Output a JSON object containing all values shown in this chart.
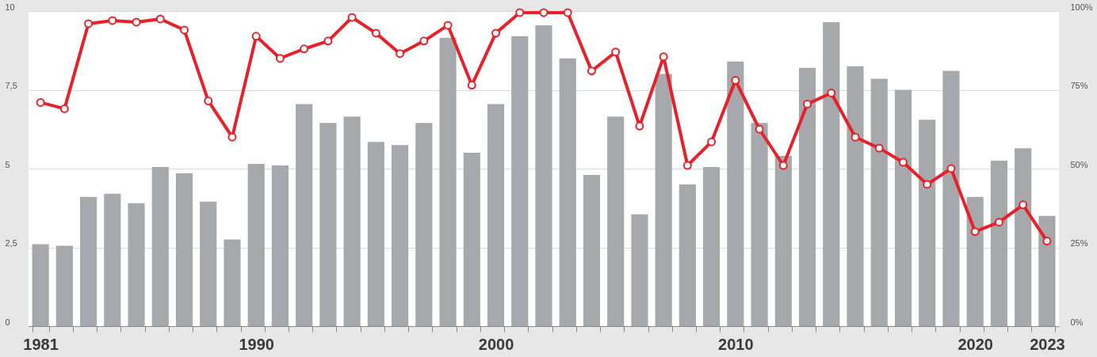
{
  "chart_data": {
    "type": "bar",
    "categories": [
      "1981",
      null,
      null,
      null,
      null,
      null,
      null,
      null,
      null,
      "1990",
      null,
      null,
      null,
      null,
      null,
      null,
      null,
      null,
      null,
      "2000",
      null,
      null,
      null,
      null,
      null,
      null,
      null,
      null,
      null,
      "2010",
      null,
      null,
      null,
      null,
      null,
      null,
      null,
      null,
      null,
      "2020",
      null,
      null,
      "2023"
    ],
    "series": [
      {
        "color": "#a7a8ab",
        "values": [
          2.6,
          2.55,
          4.1,
          4.2,
          3.9,
          5.05,
          4.85,
          3.95,
          2.75,
          5.15,
          5.1,
          7.05,
          6.45,
          6.65,
          5.85,
          5.75,
          6.45,
          9.15,
          5.5,
          7.05,
          9.2,
          9.55,
          8.5,
          4.8,
          6.65,
          3.55,
          8.0,
          4.5,
          5.05,
          8.4,
          6.45,
          5.4,
          8.2,
          9.65,
          8.25,
          7.85,
          7.5,
          6.55,
          8.1,
          4.1,
          5.25,
          5.65,
          3.5
        ]
      },
      {
        "type": "line",
        "axis": "y2",
        "color": "#e8202a",
        "marker": "circle",
        "values": [
          71,
          69,
          96,
          97,
          96.5,
          97.5,
          94,
          71.5,
          60,
          92,
          85,
          88,
          90.5,
          98,
          93,
          86.5,
          90.5,
          95.5,
          76.5,
          93,
          99.5,
          99.5,
          99.5,
          81,
          87,
          63.5,
          85.5,
          51,
          58.5,
          78,
          62.5,
          51,
          70.5,
          74,
          60,
          56.5,
          52,
          45,
          50,
          30,
          33,
          38.5,
          27
        ]
      }
    ],
    "ylim": [
      0,
      10
    ],
    "yticks": [
      0,
      {
        "value": 2.5,
        "label": "2,5"
      },
      5,
      {
        "value": 7.5,
        "label": "7,5"
      },
      10
    ],
    "y2lim": [
      0,
      100
    ],
    "y2ticks": [
      {
        "value": 0,
        "label": "0%"
      },
      {
        "value": 25,
        "label": "25%"
      },
      {
        "value": 50,
        "label": "50%"
      },
      {
        "value": 75,
        "label": "75%"
      },
      {
        "value": 100,
        "label": "100%"
      }
    ],
    "grid": "y"
  }
}
